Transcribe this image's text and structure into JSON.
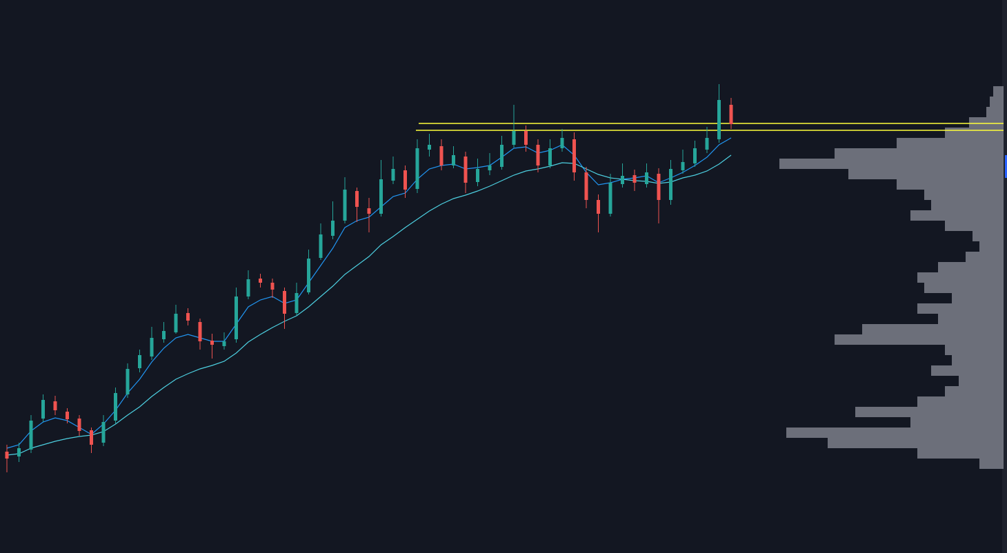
{
  "chart_data": {
    "type": "candlestick",
    "categories": [
      null,
      null,
      null,
      null,
      null,
      null,
      null,
      null,
      null,
      null,
      null,
      null,
      null,
      null,
      null,
      null,
      null,
      null,
      null,
      null,
      null,
      null,
      null,
      null,
      null,
      null,
      null,
      null,
      null,
      null,
      null,
      null,
      null,
      null,
      null,
      null,
      null,
      null,
      null,
      null,
      null,
      null,
      null,
      null,
      null,
      null,
      null,
      null,
      null,
      null,
      null,
      null,
      null,
      null,
      null,
      null,
      null,
      null,
      null,
      null,
      null
    ],
    "open": [
      147,
      140,
      150,
      195,
      220,
      205,
      195,
      178,
      160,
      192,
      230,
      268,
      285,
      310,
      320,
      348,
      335,
      308,
      300,
      310,
      372,
      398,
      392,
      380,
      348,
      378,
      428,
      460,
      482,
      525,
      500,
      492,
      540,
      555,
      528,
      585,
      590,
      562,
      575,
      538,
      555,
      560,
      592,
      612,
      592,
      562,
      587,
      600,
      552,
      512,
      492,
      535,
      548,
      535,
      550,
      512,
      555,
      565,
      585,
      600,
      650
    ],
    "high": [
      157,
      160,
      200,
      230,
      228,
      210,
      200,
      182,
      200,
      240,
      275,
      295,
      328,
      335,
      360,
      355,
      340,
      318,
      320,
      385,
      410,
      405,
      398,
      385,
      392,
      440,
      478,
      510,
      545,
      530,
      515,
      570,
      575,
      562,
      600,
      608,
      600,
      590,
      582,
      572,
      580,
      605,
      650,
      620,
      600,
      600,
      615,
      610,
      560,
      520,
      550,
      565,
      556,
      565,
      558,
      570,
      585,
      598,
      618,
      680,
      660
    ],
    "low": [
      117,
      132,
      145,
      190,
      200,
      188,
      170,
      145,
      155,
      188,
      225,
      262,
      280,
      305,
      318,
      330,
      295,
      282,
      295,
      305,
      368,
      385,
      370,
      325,
      345,
      375,
      425,
      455,
      478,
      480,
      465,
      488,
      535,
      515,
      522,
      575,
      555,
      558,
      522,
      532,
      548,
      556,
      588,
      582,
      552,
      558,
      582,
      540,
      500,
      465,
      488,
      530,
      525,
      530,
      478,
      505,
      550,
      560,
      580,
      595,
      615
    ],
    "close": [
      137,
      152,
      192,
      222,
      207,
      194,
      177,
      157,
      190,
      232,
      267,
      287,
      312,
      322,
      347,
      337,
      307,
      302,
      307,
      372,
      397,
      392,
      382,
      347,
      377,
      427,
      462,
      482,
      527,
      502,
      492,
      542,
      557,
      527,
      587,
      592,
      562,
      577,
      537,
      557,
      562,
      592,
      612,
      592,
      562,
      587,
      602,
      552,
      512,
      492,
      537,
      547,
      537,
      552,
      512,
      557,
      567,
      587,
      602,
      657,
      622
    ],
    "up_color": "#26a69a",
    "down_color": "#ef5350",
    "ylim": [
      0,
      802
    ],
    "lines": [
      {
        "color": "#2196f3",
        "values": [
          152,
          157,
          177,
          190,
          196,
          192,
          182,
          172,
          187,
          207,
          232,
          252,
          277,
          297,
          312,
          317,
          312,
          307,
          307,
          332,
          357,
          367,
          372,
          362,
          367,
          392,
          417,
          442,
          472,
          482,
          487,
          502,
          517,
          522,
          542,
          557,
          562,
          564,
          557,
          559,
          562,
          574,
          587,
          589,
          580,
          584,
          592,
          577,
          552,
          534,
          537,
          542,
          544,
          547,
          537,
          544,
          552,
          562,
          574,
          592,
          602
        ]
      },
      {
        "color": "#4dd0e1",
        "values": [
          142,
          144,
          152,
          157,
          162,
          166,
          169,
          171,
          176,
          187,
          200,
          212,
          227,
          240,
          252,
          260,
          267,
          272,
          278,
          290,
          306,
          317,
          327,
          336,
          344,
          357,
          372,
          387,
          404,
          417,
          430,
          447,
          459,
          472,
          484,
          496,
          506,
          514,
          519,
          525,
          532,
          540,
          548,
          554,
          557,
          561,
          566,
          565,
          557,
          549,
          544,
          542,
          540,
          539,
          536,
          538,
          544,
          548,
          554,
          564,
          577
        ]
      }
    ],
    "hlines": {
      "color": "#ffff3b",
      "values": [
        623,
        613
      ]
    },
    "profile": {
      "color": "#8b8e98",
      "bins": [
        677,
        662,
        647,
        632,
        617,
        602,
        587,
        572,
        557,
        542,
        527,
        512,
        497,
        482,
        467,
        452,
        437,
        422,
        407,
        392,
        377,
        362,
        347,
        332,
        317,
        302,
        287,
        272,
        257,
        242,
        227,
        212,
        197,
        182,
        167,
        152,
        137,
        122
      ],
      "values": [
        15,
        20,
        25,
        50,
        85,
        155,
        245,
        325,
        225,
        155,
        115,
        105,
        135,
        85,
        45,
        35,
        55,
        95,
        125,
        115,
        75,
        125,
        95,
        205,
        245,
        85,
        75,
        105,
        65,
        85,
        125,
        215,
        135,
        315,
        255,
        125,
        35
      ],
      "xlim": [
        0,
        330
      ]
    }
  }
}
